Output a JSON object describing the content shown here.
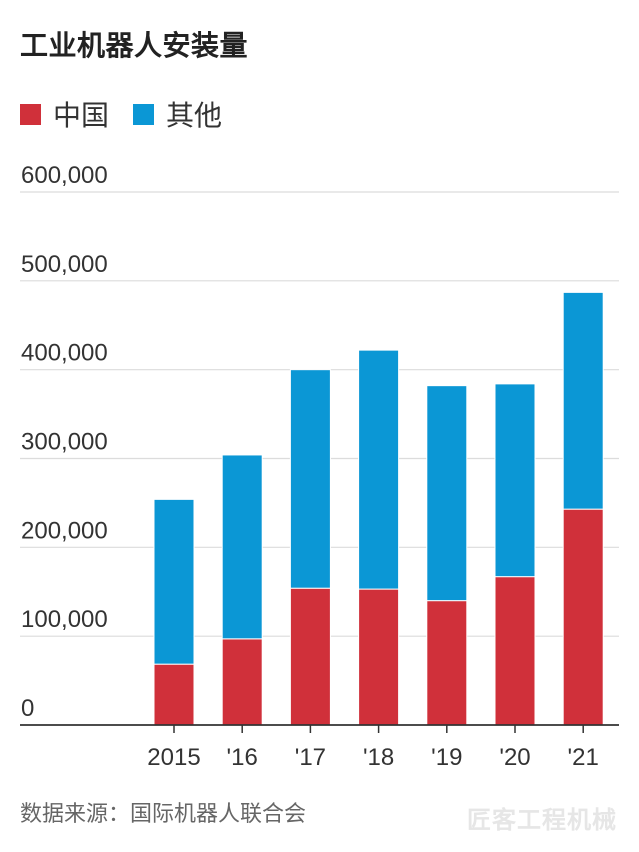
{
  "chart_data": {
    "type": "bar",
    "stacked": true,
    "title": "工业机器人安装量",
    "categories": [
      "2015",
      "'16",
      "'17",
      "'18",
      "'19",
      "'20",
      "'21"
    ],
    "series": [
      {
        "name": "中国",
        "color": "#d0303a",
        "values": [
          68500,
          97000,
          154000,
          153000,
          140000,
          167000,
          243000
        ]
      },
      {
        "name": "其他",
        "color": "#0b97d5",
        "values": [
          185500,
          207000,
          246000,
          269000,
          242000,
          217000,
          244000
        ]
      }
    ],
    "ylim": [
      0,
      600000
    ],
    "yticks": [
      "0",
      "100,000",
      "200,000",
      "300,000",
      "400,000",
      "500,000",
      "600,000"
    ],
    "ytick_values": [
      0,
      100000,
      200000,
      300000,
      400000,
      500000,
      600000
    ],
    "grid": true,
    "legend_position": "top-left",
    "xlabel": "",
    "ylabel": ""
  },
  "source_text": "数据来源：国际机器人联合会",
  "watermark_text": "匠客工程机械"
}
